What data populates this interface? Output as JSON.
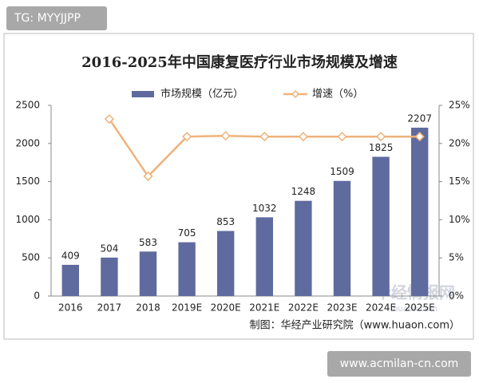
{
  "chart_data": {
    "type": "bar-line",
    "title": "2016-2025年中国康复医疗行业市场规模及增速",
    "categories": [
      "2016",
      "2017",
      "2018",
      "2019E",
      "2020E",
      "2021E",
      "2022E",
      "2023E",
      "2024E",
      "2025E"
    ],
    "series": [
      {
        "name": "市场规模（亿元）",
        "color": "#5f6b9e",
        "type": "bar",
        "values": [
          409,
          504,
          583,
          705,
          853,
          1032,
          1248,
          1509,
          1825,
          2207
        ]
      },
      {
        "name": "增速（%）",
        "color": "#f0b27a",
        "type": "line",
        "axis": "y2",
        "values": [
          null,
          23.2,
          15.7,
          20.9,
          21.0,
          20.9,
          20.9,
          20.9,
          20.9,
          20.9
        ]
      }
    ],
    "ylim": [
      0,
      2500
    ],
    "yticks": [
      0,
      500,
      1000,
      1500,
      2000,
      2500
    ],
    "y2lim": [
      0,
      25
    ],
    "y2ticks": [
      {
        "value": 0,
        "label": "0%"
      },
      {
        "value": 5,
        "label": "5%"
      },
      {
        "value": 10,
        "label": "10%"
      },
      {
        "value": 15,
        "label": "15%"
      },
      {
        "value": 20,
        "label": "20%"
      },
      {
        "value": 25,
        "label": "25%"
      }
    ],
    "source": "制图：华经产业研究院（www.huaon.com）",
    "legend": "top"
  },
  "overlay": {
    "tag": "TG: MYYJJPP",
    "site": "www.acmilan-cn.com",
    "logo": "华经情报网",
    "logo_url": "huaon.com"
  }
}
